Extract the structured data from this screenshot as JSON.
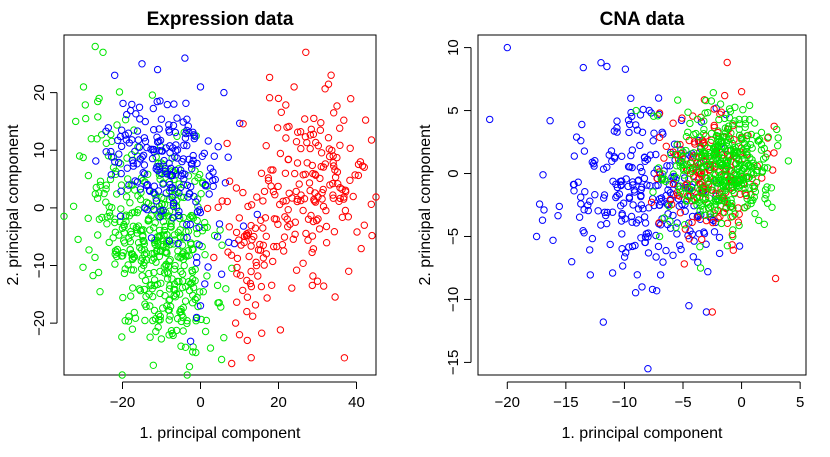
{
  "chart_data": [
    {
      "type": "scatter",
      "title": "Expression data",
      "xlabel": "1. principal component",
      "ylabel": "2. principal component",
      "xlim": [
        -35,
        45
      ],
      "ylim": [
        -29,
        30
      ],
      "xticks": [
        -20,
        0,
        20,
        40
      ],
      "yticks": [
        -20,
        -10,
        0,
        10,
        20
      ],
      "grid": false,
      "series": [
        {
          "color": "#00e600",
          "clusters": [
            {
              "cx": -10,
              "cy": -5,
              "sx": 6.5,
              "sy": 7.5,
              "n": 300
            },
            {
              "cx": -22,
              "cy": 4,
              "sx": 5,
              "sy": 8,
              "n": 70
            },
            {
              "cx": -8,
              "cy": -18,
              "sx": 5,
              "sy": 4,
              "n": 60
            },
            {
              "cx": 0,
              "cy": -20,
              "sx": 3,
              "sy": 3,
              "n": 20
            }
          ],
          "points": [
            {
              "x": -32,
              "y": 15
            },
            {
              "x": -27,
              "y": 28
            },
            {
              "x": -25,
              "y": 27
            },
            {
              "x": -30,
              "y": 21
            },
            {
              "x": -26,
              "y": 19
            },
            {
              "x": -31,
              "y": 9
            },
            {
              "x": -28,
              "y": 12
            },
            {
              "x": -5,
              "y": -24
            },
            {
              "x": -2,
              "y": -25
            }
          ]
        },
        {
          "color": "#0000ff",
          "clusters": [
            {
              "cx": -8,
              "cy": 8,
              "sx": 6,
              "sy": 5,
              "n": 140
            },
            {
              "cx": -20,
              "cy": 12,
              "sx": 3,
              "sy": 4,
              "n": 25
            },
            {
              "cx": 0,
              "cy": 0,
              "sx": 5,
              "sy": 6,
              "n": 40
            }
          ],
          "points": [
            {
              "x": -15,
              "y": 25
            },
            {
              "x": -4,
              "y": 26
            },
            {
              "x": 0,
              "y": 21
            },
            {
              "x": -11,
              "y": 24
            },
            {
              "x": 6,
              "y": 20
            },
            {
              "x": -22,
              "y": 23
            },
            {
              "x": 0,
              "y": -17
            },
            {
              "x": -1,
              "y": -19
            }
          ]
        },
        {
          "color": "#ff0000",
          "clusters": [
            {
              "cx": 26,
              "cy": 1,
              "sx": 8,
              "sy": 9,
              "n": 150
            },
            {
              "cx": 12,
              "cy": -6,
              "sx": 4,
              "sy": 6,
              "n": 55
            },
            {
              "cx": 35,
              "cy": 8,
              "sx": 4,
              "sy": 6,
              "n": 30
            }
          ],
          "points": [
            {
              "x": 27,
              "y": 27
            },
            {
              "x": 24,
              "y": 21
            },
            {
              "x": 20,
              "y": 19
            },
            {
              "x": 41,
              "y": 8
            },
            {
              "x": 42,
              "y": -3
            },
            {
              "x": 38,
              "y": -11
            },
            {
              "x": 10,
              "y": -22
            },
            {
              "x": 9,
              "y": -20
            },
            {
              "x": 12,
              "y": -23
            },
            {
              "x": 8,
              "y": -27
            },
            {
              "x": 13,
              "y": -26
            }
          ]
        }
      ]
    },
    {
      "type": "scatter",
      "title": "CNA data",
      "xlabel": "1. principal component",
      "ylabel": "2. principal component",
      "xlim": [
        -22.5,
        5.5
      ],
      "ylim": [
        -16,
        11
      ],
      "xticks": [
        -20,
        -15,
        -10,
        -5,
        0,
        5
      ],
      "yticks": [
        -15,
        -10,
        -5,
        0,
        5,
        10
      ],
      "grid": false,
      "series": [
        {
          "color": "#0000ff",
          "clusters": [
            {
              "cx": -9,
              "cy": -1.5,
              "sx": 3.5,
              "sy": 3.2,
              "n": 230
            },
            {
              "cx": -4,
              "cy": -3,
              "sx": 2,
              "sy": 2.5,
              "n": 40
            }
          ],
          "points": [
            {
              "x": -20,
              "y": 10
            },
            {
              "x": -21.5,
              "y": 4.3
            },
            {
              "x": -12,
              "y": 8.8
            },
            {
              "x": -11.5,
              "y": 8.5
            },
            {
              "x": -8,
              "y": -15.5
            },
            {
              "x": -11.8,
              "y": -11.8
            },
            {
              "x": -3,
              "y": -11
            },
            {
              "x": -4.5,
              "y": -10.5
            },
            {
              "x": -8.5,
              "y": -9
            },
            {
              "x": -17.5,
              "y": -5
            },
            {
              "x": -14.5,
              "y": -7
            }
          ]
        },
        {
          "color": "#ff0000",
          "clusters": [
            {
              "cx": -2.5,
              "cy": 0,
              "sx": 2,
              "sy": 2.5,
              "n": 190
            }
          ],
          "points": [
            {
              "x": 0,
              "y": 6.5
            },
            {
              "x": -7,
              "y": 4.8
            },
            {
              "x": -2.5,
              "y": -11
            }
          ]
        },
        {
          "color": "#00e600",
          "clusters": [
            {
              "cx": -1,
              "cy": 0.5,
              "sx": 1.8,
              "sy": 2.2,
              "n": 320
            },
            {
              "cx": -5,
              "cy": 0,
              "sx": 2,
              "sy": 2.5,
              "n": 50
            }
          ],
          "points": [
            {
              "x": 3,
              "y": 3.5
            },
            {
              "x": 4,
              "y": 1
            },
            {
              "x": 2,
              "y": -2
            },
            {
              "x": -9,
              "y": 5
            },
            {
              "x": -7,
              "y": -5
            },
            {
              "x": -3.5,
              "y": -7.5
            }
          ]
        }
      ]
    }
  ]
}
